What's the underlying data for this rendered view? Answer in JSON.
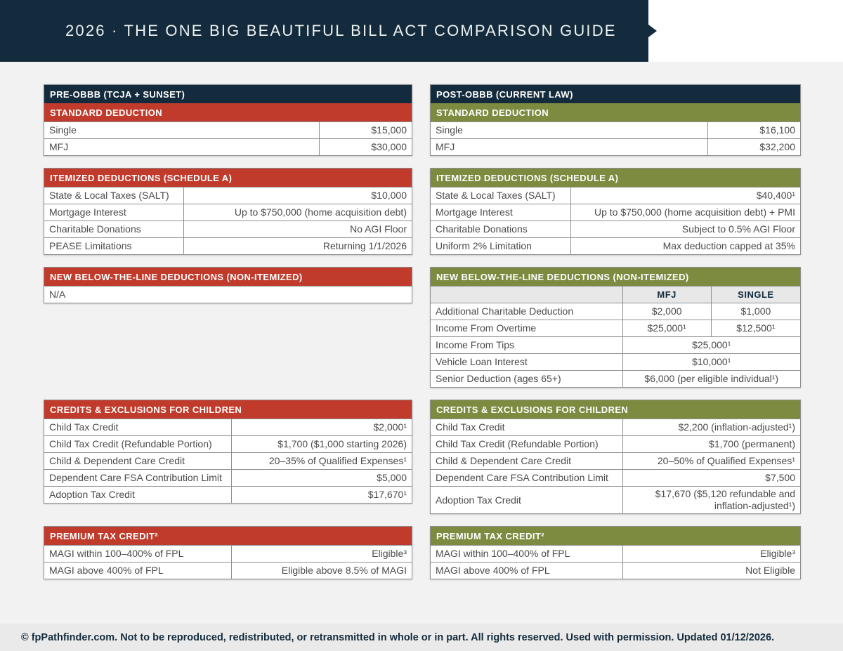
{
  "header": {
    "title": "2026 · THE ONE BIG BEAUTIFUL BILL ACT COMPARISON GUIDE"
  },
  "footer": {
    "text": "© fpPathfinder.com. Not to be reproduced, redistributed, or retransmitted in whole or in part. All rights reserved. Used with permission. Updated 01/12/2026."
  },
  "colors": {
    "navy": "#132b3c",
    "brick_red": "#c03b2b",
    "olive_green": "#7c8b40",
    "page_bg": "#f2f2f2",
    "table_border": "#8d9193",
    "cell_text": "#4b4b4b",
    "column_header_bg": "#e8e8e8",
    "footer_bg": "#eaeaea"
  },
  "columns": [
    {
      "name": "pre-obbb",
      "theme": "red",
      "bands": [
        {
          "top_title": "PRE-OBBB (TCJA + SUNSET)",
          "title": "STANDARD DEDUCTION",
          "split": "s75",
          "rows": [
            {
              "label": "Single",
              "value": "$15,000"
            },
            {
              "label": "MFJ",
              "value": "$30,000"
            }
          ]
        },
        {
          "title": "ITEMIZED DEDUCTIONS (SCHEDULE A)",
          "split": "s38",
          "rows": [
            {
              "label": "State & Local Taxes (SALT)",
              "value": "$10,000"
            },
            {
              "label": "Mortgage Interest",
              "value": "Up to $750,000 (home acquisition debt)"
            },
            {
              "label": "Charitable Donations",
              "value": "No AGI Floor"
            },
            {
              "label": "PEASE Limitations",
              "value": "Returning 1/1/2026"
            }
          ]
        },
        {
          "title": "NEW BELOW-THE-LINE DEDUCTIONS (NON-ITEMIZED)",
          "split": "s51",
          "rows": [
            {
              "full": "N/A"
            }
          ]
        },
        {
          "title": "CREDITS & EXCLUSIONS FOR CHILDREN",
          "split": "s51",
          "rows": [
            {
              "label": "Child Tax Credit",
              "value": "$2,000¹"
            },
            {
              "label": "Child Tax Credit (Refundable Portion)",
              "value": "$1,700 ($1,000 starting 2026)"
            },
            {
              "label": "Child & Dependent Care Credit",
              "value": "20–35% of Qualified Expenses¹"
            },
            {
              "label": "Dependent Care FSA Contribution Limit",
              "value": "$5,000"
            },
            {
              "label": "Adoption Tax Credit",
              "value": "$17,670¹"
            }
          ]
        },
        {
          "title": "PREMIUM TAX CREDIT²",
          "split": "s51",
          "rows": [
            {
              "label": "MAGI within 100–400% of FPL",
              "value": "Eligible³"
            },
            {
              "label": "MAGI above 400% of FPL",
              "value": "Eligible above 8.5% of MAGI"
            }
          ]
        }
      ]
    },
    {
      "name": "post-obbb",
      "theme": "olive",
      "bands": [
        {
          "top_title": "POST-OBBB (CURRENT LAW)",
          "title": "STANDARD DEDUCTION",
          "split": "s75",
          "rows": [
            {
              "label": "Single",
              "value": "$16,100"
            },
            {
              "label": "MFJ",
              "value": "$32,200"
            }
          ]
        },
        {
          "title": "ITEMIZED DEDUCTIONS (SCHEDULE A)",
          "split": "s38",
          "rows": [
            {
              "label": "State & Local Taxes (SALT)",
              "value": "$40,400¹"
            },
            {
              "label": "Mortgage Interest",
              "value": "Up to $750,000 (home acquisition debt) + PMI"
            },
            {
              "label": "Charitable Donations",
              "value": "Subject to 0.5% AGI Floor"
            },
            {
              "label": "Uniform 2% Limitation",
              "value": "Max deduction capped at 35%"
            }
          ]
        },
        {
          "title": "NEW BELOW-THE-LINE DEDUCTIONS (NON-ITEMIZED)",
          "split": "three",
          "rows": [
            {
              "head": [
                "",
                "MFJ",
                "SINGLE"
              ]
            },
            {
              "label": "Additional Charitable Deduction",
              "values": [
                "$2,000",
                "$1,000"
              ]
            },
            {
              "label": "Income From Overtime",
              "values": [
                "$25,000¹",
                "$12,500¹"
              ]
            },
            {
              "label": "Income From Tips",
              "span": "$25,000¹"
            },
            {
              "label": "Vehicle Loan Interest",
              "span": "$10,000¹"
            },
            {
              "label": "Senior Deduction (ages 65+)",
              "span": "$6,000 (per eligible individual¹)"
            }
          ]
        },
        {
          "title": "CREDITS & EXCLUSIONS FOR CHILDREN",
          "split": "s52",
          "rows": [
            {
              "label": "Child Tax Credit",
              "value": "$2,200 (inflation-adjusted¹)"
            },
            {
              "label": "Child Tax Credit (Refundable Portion)",
              "value": "$1,700 (permanent)"
            },
            {
              "label": "Child & Dependent Care Credit",
              "value": "20–50% of Qualified Expenses¹"
            },
            {
              "label": "Dependent Care FSA Contribution Limit",
              "value": "$7,500"
            },
            {
              "label": "Adoption Tax Credit",
              "value": "$17,670 ($5,120 refundable and inflation-adjusted¹)"
            }
          ]
        },
        {
          "title": "PREMIUM TAX CREDIT²",
          "split": "s52",
          "rows": [
            {
              "label": "MAGI within 100–400% of FPL",
              "value": "Eligible³"
            },
            {
              "label": "MAGI above 400% of FPL",
              "value": "Not Eligible"
            }
          ]
        }
      ]
    }
  ]
}
